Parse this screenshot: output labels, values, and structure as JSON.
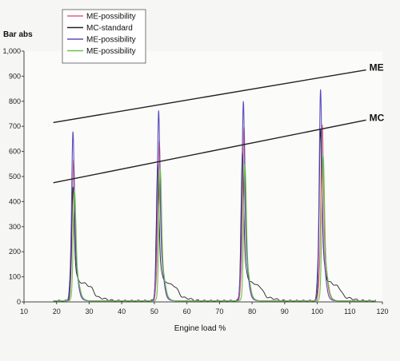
{
  "chart_data": {
    "type": "line",
    "ylabel": "Bar abs",
    "xlabel": "Engine load %",
    "xlim": [
      10,
      120
    ],
    "ylim": [
      0,
      1000
    ],
    "x_ticks": [
      "10",
      "20",
      "30",
      "40",
      "50",
      "60",
      "70",
      "80",
      "90",
      "100",
      "110",
      "120"
    ],
    "y_ticks": [
      "0",
      "100",
      "200",
      "300",
      "400",
      "500",
      "600",
      "700",
      "800",
      "900",
      "1,000"
    ],
    "y_tick_values": [
      0,
      100,
      200,
      300,
      400,
      500,
      600,
      700,
      800,
      900,
      1000
    ],
    "x_tick_values": [
      10,
      20,
      30,
      40,
      50,
      60,
      70,
      80,
      90,
      100,
      110,
      120
    ],
    "grid": false,
    "legend_position": "top-left",
    "series": [
      {
        "name": "ME-possibility",
        "color": "#e0607a",
        "peaks": [
          600,
          680,
          740,
          750
        ],
        "peak_x": [
          25.2,
          51.5,
          77.5,
          101.5
        ]
      },
      {
        "name": "MC-standard",
        "color": "#222222",
        "peaks": [
          480,
          580,
          630,
          730
        ],
        "peak_x": [
          25.0,
          51.0,
          77.0,
          101.0
        ]
      },
      {
        "name": "ME-possibility",
        "color": "#5a4fc0",
        "peaks": [
          720,
          810,
          850,
          900
        ],
        "peak_x": [
          25.0,
          51.3,
          77.3,
          101.0
        ]
      },
      {
        "name": "ME-possibility",
        "color": "#6cc04a",
        "peaks": [
          470,
          560,
          580,
          620
        ],
        "peak_x": [
          25.5,
          51.8,
          77.8,
          101.8
        ]
      }
    ],
    "annotations": [
      {
        "label": "ME",
        "x1": 19,
        "y1": 715,
        "x2": 115,
        "y2": 925
      },
      {
        "label": "MC",
        "x1": 19,
        "y1": 475,
        "x2": 115,
        "y2": 725
      }
    ]
  }
}
